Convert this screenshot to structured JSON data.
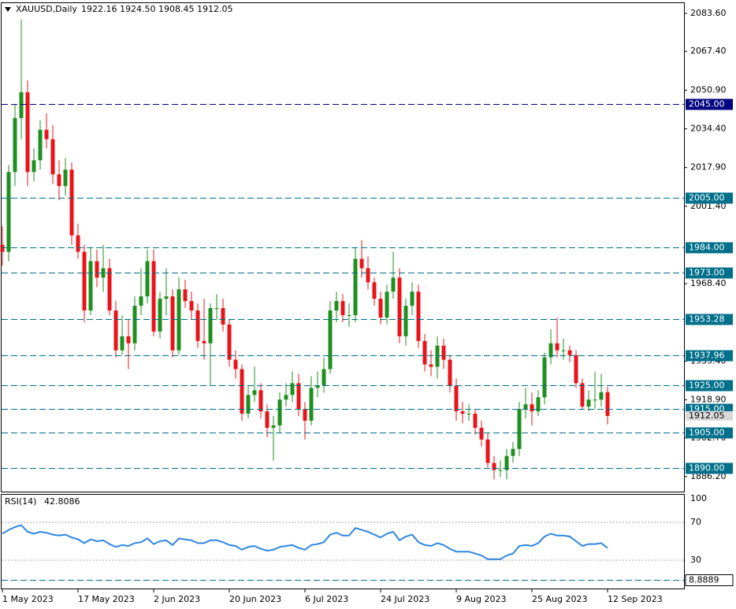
{
  "chart_data": [
    {
      "type": "candlestick",
      "title": "XAUUSD,Daily",
      "readout": [
        "1922.16",
        "1924.50",
        "1908.45",
        "1912.05"
      ],
      "categories": [
        "1 May 2023",
        null,
        null,
        null,
        null,
        null,
        null,
        null,
        null,
        null,
        null,
        null,
        "17 May 2023",
        null,
        null,
        null,
        null,
        null,
        null,
        null,
        null,
        null,
        null,
        null,
        "2 Jun 2023",
        null,
        null,
        null,
        null,
        null,
        null,
        null,
        null,
        null,
        null,
        null,
        "20 Jun 2023",
        null,
        null,
        null,
        null,
        null,
        null,
        null,
        null,
        null,
        null,
        null,
        "6 Jul 2023",
        null,
        null,
        null,
        null,
        null,
        null,
        null,
        null,
        null,
        null,
        null,
        "24 Jul 2023",
        null,
        null,
        null,
        null,
        null,
        null,
        null,
        null,
        null,
        null,
        null,
        "9 Aug 2023",
        null,
        null,
        null,
        null,
        null,
        null,
        null,
        null,
        null,
        null,
        null,
        "25 Aug 2023",
        null,
        null,
        null,
        null,
        null,
        null,
        null,
        null,
        null,
        null,
        null,
        "12 Sep 2023"
      ],
      "open": [
        1985,
        1982,
        2016,
        2039,
        2050,
        2016,
        2021,
        2034,
        2030,
        2015,
        2010,
        2017,
        1989,
        1982,
        1957,
        1978,
        1971,
        1975,
        1957,
        1940,
        1946,
        1943,
        1959,
        1963,
        1978,
        1948,
        1962,
        1963,
        1940,
        1966,
        1961,
        1957,
        1944,
        1943,
        1958,
        1958,
        1951,
        1936,
        1932,
        1913,
        1921,
        1923,
        1914,
        1907,
        1908,
        1919,
        1921,
        1926,
        1915,
        1910,
        1924,
        1925,
        1932,
        1957,
        1961,
        1955,
        1955,
        1979,
        1975,
        1969,
        1962,
        1954,
        1965,
        1971,
        1946,
        1959,
        1965,
        1944,
        1934,
        1933,
        1942,
        1936,
        1925,
        1914,
        1913,
        1913,
        1907,
        1902,
        1892,
        1889,
        1889,
        1895,
        1898,
        1915,
        1917,
        1914,
        1920,
        1937,
        1943,
        1940,
        1940,
        1938,
        1926,
        1916,
        1919,
        1919,
        1922.16
      ],
      "high": [
        1993,
        2019,
        2045,
        2081,
        2055,
        2026,
        2038,
        2041,
        2036,
        2021,
        2022,
        2020,
        1994,
        1985,
        1984,
        1983,
        1985,
        1979,
        1961,
        1955,
        1953,
        1963,
        1975,
        1983,
        1983,
        1965,
        1975,
        1966,
        1971,
        1970,
        1965,
        1960,
        1962,
        1960,
        1964,
        1962,
        1953,
        1940,
        1934,
        1925,
        1933,
        1926,
        1917,
        1912,
        1922,
        1926,
        1931,
        1930,
        1918,
        1929,
        1931,
        1937,
        1961,
        1965,
        1964,
        1960,
        1984,
        1987,
        1980,
        1971,
        1965,
        1968,
        1982,
        1975,
        1962,
        1969,
        1968,
        1947,
        1940,
        1946,
        1945,
        1938,
        1928,
        1918,
        1917,
        1915,
        1910,
        1905,
        1895,
        1893,
        1898,
        1901,
        1918,
        1924,
        1922,
        1923,
        1939,
        1949,
        1954,
        1945,
        1942,
        1940,
        1928,
        1923,
        1931,
        1930,
        1924.5
      ],
      "low": [
        1976,
        1978,
        2010,
        2030,
        2010,
        2012,
        2017,
        2026,
        2011,
        2004,
        2006,
        1985,
        1979,
        1952,
        1955,
        1967,
        1965,
        1955,
        1937,
        1938,
        1932,
        1940,
        1955,
        1960,
        1946,
        1945,
        1955,
        1937,
        1938,
        1958,
        1953,
        1941,
        1936,
        1925,
        1953,
        1948,
        1933,
        1928,
        1910,
        1911,
        1918,
        1911,
        1903,
        1893,
        1905,
        1916,
        1918,
        1912,
        1902,
        1908,
        1920,
        1922,
        1930,
        1952,
        1952,
        1950,
        1952,
        1971,
        1966,
        1959,
        1951,
        1951,
        1962,
        1943,
        1942,
        1955,
        1941,
        1931,
        1929,
        1928,
        1932,
        1922,
        1910,
        1909,
        1910,
        1904,
        1899,
        1890,
        1885,
        1886,
        1885,
        1892,
        1895,
        1911,
        1908,
        1912,
        1917,
        1934,
        1937,
        1936,
        1935,
        1924,
        1915,
        1914,
        1915,
        1916,
        1908.45
      ],
      "close": [
        1982,
        2016,
        2039,
        2050,
        2016,
        2021,
        2034,
        2030,
        2015,
        2010,
        2017,
        1989,
        1982,
        1957,
        1978,
        1971,
        1975,
        1957,
        1940,
        1946,
        1943,
        1959,
        1963,
        1978,
        1948,
        1962,
        1963,
        1940,
        1966,
        1961,
        1957,
        1944,
        1943,
        1958,
        1958,
        1951,
        1936,
        1932,
        1913,
        1921,
        1923,
        1914,
        1907,
        1908,
        1919,
        1921,
        1926,
        1915,
        1910,
        1924,
        1925,
        1932,
        1957,
        1961,
        1955,
        1955,
        1979,
        1975,
        1969,
        1962,
        1954,
        1965,
        1971,
        1946,
        1959,
        1965,
        1944,
        1934,
        1933,
        1942,
        1936,
        1925,
        1914,
        1913,
        1913,
        1907,
        1902,
        1892,
        1889,
        1889,
        1895,
        1898,
        1915,
        1917,
        1914,
        1920,
        1937,
        1943,
        1940,
        1940,
        1938,
        1926,
        1916,
        1919,
        1919,
        1922.16,
        1912.05
      ],
      "up_color": "#1f8f1f",
      "down_color": "#e8141a",
      "ylim": [
        1879.8,
        2088.3
      ],
      "yticks": [
        {
          "value": 2083.6,
          "label": "2083.60"
        },
        {
          "value": 2067.4,
          "label": "2067.40"
        },
        {
          "value": 2050.9,
          "label": "2050.90"
        },
        {
          "value": 2034.4,
          "label": "2034.40"
        },
        {
          "value": 2017.9,
          "label": "2017.90"
        },
        {
          "value": 2001.4,
          "label": "2001.40"
        },
        {
          "value": 1968.4,
          "label": "1968.40"
        },
        {
          "value": 1935.4,
          "label": "1935.40"
        },
        {
          "value": 1918.9,
          "label": "1918.90"
        },
        {
          "value": 1902.7,
          "label": "1902.70"
        },
        {
          "value": 1886.2,
          "label": "1886.20"
        }
      ],
      "levels": [
        {
          "value": 2045,
          "label": "2045.00",
          "color": "#000080"
        },
        {
          "value": 2005,
          "label": "2005.00",
          "color": "#006f8a"
        },
        {
          "value": 1984,
          "label": "1984.00",
          "color": "#006f8a"
        },
        {
          "value": 1973,
          "label": "1973.00",
          "color": "#006f8a"
        },
        {
          "value": 1953.28,
          "color": "#006f8a"
        },
        {
          "value": 1937.96,
          "color": "#006f8a"
        },
        {
          "value": 1925,
          "label": "1925.00",
          "color": "#006f8a"
        },
        {
          "value": 1915,
          "label": "1915.00",
          "color": "#006f8a"
        },
        {
          "value": 1905,
          "label": "1905.00",
          "color": "#006f8a"
        },
        {
          "value": 1890,
          "label": "1890.00",
          "color": "#006f8a"
        }
      ]
    },
    {
      "type": "line",
      "title": "RSI(14)",
      "color": "#2f86e0",
      "values": [
        58,
        62,
        65,
        67,
        60,
        58,
        60,
        59,
        57,
        56,
        57,
        54,
        52,
        48,
        52,
        50,
        51,
        47,
        44,
        46,
        45,
        48,
        49,
        53,
        47,
        50,
        51,
        46,
        53,
        52,
        51,
        48,
        48,
        51,
        51,
        49,
        46,
        45,
        41,
        44,
        45,
        42,
        40,
        41,
        44,
        45,
        46,
        43,
        41,
        46,
        47,
        49,
        57,
        59,
        56,
        56,
        64,
        62,
        60,
        57,
        54,
        58,
        60,
        51,
        55,
        57,
        49,
        46,
        45,
        48,
        46,
        42,
        39,
        39,
        39,
        37,
        35,
        31,
        31,
        31,
        35,
        37,
        45,
        46,
        45,
        48,
        55,
        58,
        56,
        56,
        55,
        50,
        45,
        47,
        47,
        48,
        42.8086
      ],
      "ylim": [
        0,
        100
      ],
      "yticks": [
        100,
        70,
        30
      ],
      "levels": [
        8.8889
      ]
    }
  ]
}
